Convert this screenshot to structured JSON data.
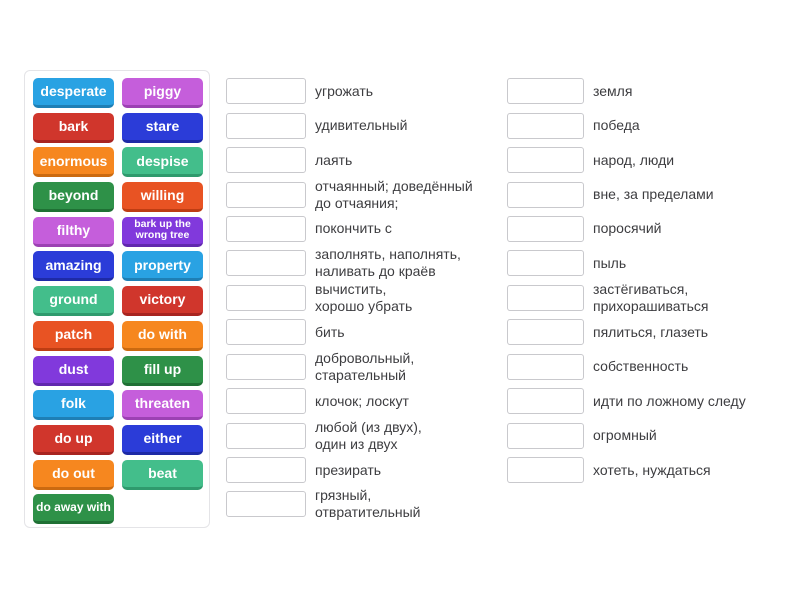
{
  "palette": {
    "lightblue": {
      "bg": "#29a2e3",
      "edge": "#1e7fb5"
    },
    "red": {
      "bg": "#d0362c",
      "edge": "#a82420"
    },
    "orange": {
      "bg": "#f6871f",
      "edge": "#cb6a10"
    },
    "forest": {
      "bg": "#2e9148",
      "edge": "#1f7034"
    },
    "orangered": {
      "bg": "#e85323",
      "edge": "#be3d13"
    },
    "orchid": {
      "bg": "#c55edb",
      "edge": "#9c41b3"
    },
    "royalblue": {
      "bg": "#2b3cd8",
      "edge": "#1e2aa6"
    },
    "seagreen": {
      "bg": "#43be8b",
      "edge": "#2f9a6d"
    },
    "violet": {
      "bg": "#8139dc",
      "edge": "#6128ae"
    }
  },
  "word_bank": {
    "tiles": [
      {
        "label": "desperate",
        "color": "lightblue"
      },
      {
        "label": "piggy",
        "color": "orchid"
      },
      {
        "label": "bark",
        "color": "red"
      },
      {
        "label": "stare",
        "color": "royalblue"
      },
      {
        "label": "enormous",
        "color": "orange"
      },
      {
        "label": "despise",
        "color": "seagreen"
      },
      {
        "label": "beyond",
        "color": "forest"
      },
      {
        "label": "willing",
        "color": "orangered"
      },
      {
        "label": "filthy",
        "color": "orchid"
      },
      {
        "label": "bark up the wrong tree",
        "color": "violet"
      },
      {
        "label": "amazing",
        "color": "royalblue"
      },
      {
        "label": "property",
        "color": "lightblue"
      },
      {
        "label": "ground",
        "color": "seagreen"
      },
      {
        "label": "victory",
        "color": "red"
      },
      {
        "label": "patch",
        "color": "orangered"
      },
      {
        "label": "do with",
        "color": "orange"
      },
      {
        "label": "dust",
        "color": "violet"
      },
      {
        "label": "fill up",
        "color": "forest"
      },
      {
        "label": "folk",
        "color": "lightblue"
      },
      {
        "label": "threaten",
        "color": "orchid"
      },
      {
        "label": "do up",
        "color": "red"
      },
      {
        "label": "either",
        "color": "royalblue"
      },
      {
        "label": "do out",
        "color": "orange"
      },
      {
        "label": "beat",
        "color": "seagreen"
      },
      {
        "label": "do away with",
        "color": "forest"
      }
    ]
  },
  "match_columns": [
    {
      "name": "middle",
      "items": [
        "угрожать",
        "удивительный",
        "лаять",
        "отчаянный; доведённый\nдо отчаяния;",
        "покончить с",
        "заполнять, наполнять,\nналивать до краёв",
        "вычистить,\nхорошо убрать",
        "бить",
        "добровольный,\nстарательный",
        "клочок; лоскут",
        "любой (из двух),\nодин из двух",
        "презирать",
        "грязный,\nотвратительный"
      ]
    },
    {
      "name": "right",
      "items": [
        "земля",
        "победа",
        "народ, люди",
        "вне, за пределами",
        "поросячий",
        "пыль",
        "застёгиваться,\nприхорашиваться",
        "пялиться, глазеть",
        "собственность",
        "идти по ложному следу",
        "огромный",
        "хотеть, нуждаться"
      ]
    }
  ]
}
